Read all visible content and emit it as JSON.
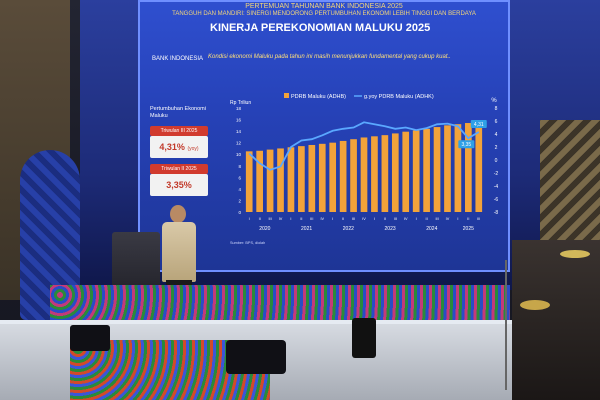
{
  "screen": {
    "header_line1": "PERTEMUAN TAHUNAN BANK INDONESIA 2025",
    "header_line2": "TANGGUH DAN MANDIRI: SINERGI MENDORONG PERTUMBUHAN EKONOMI LEBIH TINGGI DAN BERDAYA",
    "logo": "BANK INDONESIA",
    "title": "KINERJA PEREKONOMIAN MALUKU 2025",
    "subtitle": "Kondisi ekonomi Maluku pada tahun ini masih menunjukkan fundamental yang cukup kuat..",
    "growth_label": "Pertumbuhan Ekonomi Maluku",
    "q3_label": "Triwulan III 2025",
    "q3_value": "4,31%",
    "q3_suffix": "(yoy)",
    "q2_label": "Triwulan II 2025",
    "q2_value": "3,35%"
  },
  "chart_data": {
    "type": "bar",
    "legend": [
      "PDRB Maluku (ADHB)",
      "g.yoy PDRB Maluku (ADHK)"
    ],
    "y_left_label": "Rp Triliun",
    "y_right_label": "%",
    "y_right_ticks": [
      -8,
      -6,
      -4,
      -2,
      0,
      2,
      4,
      6,
      8
    ],
    "y_left_ticks": [
      18,
      16,
      14,
      12,
      10,
      8,
      6,
      4,
      2,
      0
    ],
    "quarter_labels": [
      "I",
      "II",
      "III",
      "IV",
      "I",
      "II",
      "III",
      "IV",
      "I",
      "II",
      "III",
      "IV",
      "I",
      "II",
      "III",
      "IV",
      "I",
      "II",
      "III",
      "IV",
      "I",
      "II",
      "III"
    ],
    "years": [
      "2020",
      "2021",
      "2022",
      "2023",
      "2024",
      "2025"
    ],
    "bars": [
      10.5,
      10.6,
      10.8,
      11.0,
      11.2,
      11.4,
      11.6,
      11.8,
      12.0,
      12.3,
      12.6,
      12.9,
      13.1,
      13.3,
      13.6,
      13.9,
      14.1,
      14.4,
      14.7,
      15.0,
      15.2,
      15.4,
      15.7
    ],
    "line": [
      1.0,
      -0.5,
      -1.5,
      -1.0,
      2.0,
      3.0,
      3.2,
      3.8,
      4.5,
      4.8,
      5.0,
      5.8,
      5.5,
      5.2,
      4.8,
      5.0,
      4.6,
      4.9,
      5.5,
      5.6,
      5.2,
      3.35,
      4.31
    ],
    "annotations": [
      "4,31",
      "3,35"
    ],
    "source": "Sumber: BPS, diolah",
    "ylim_left": [
      0,
      18
    ],
    "ylim_right": [
      -8,
      8
    ],
    "bar_color": "#f2a33a",
    "line_color": "#5aa8ff"
  }
}
